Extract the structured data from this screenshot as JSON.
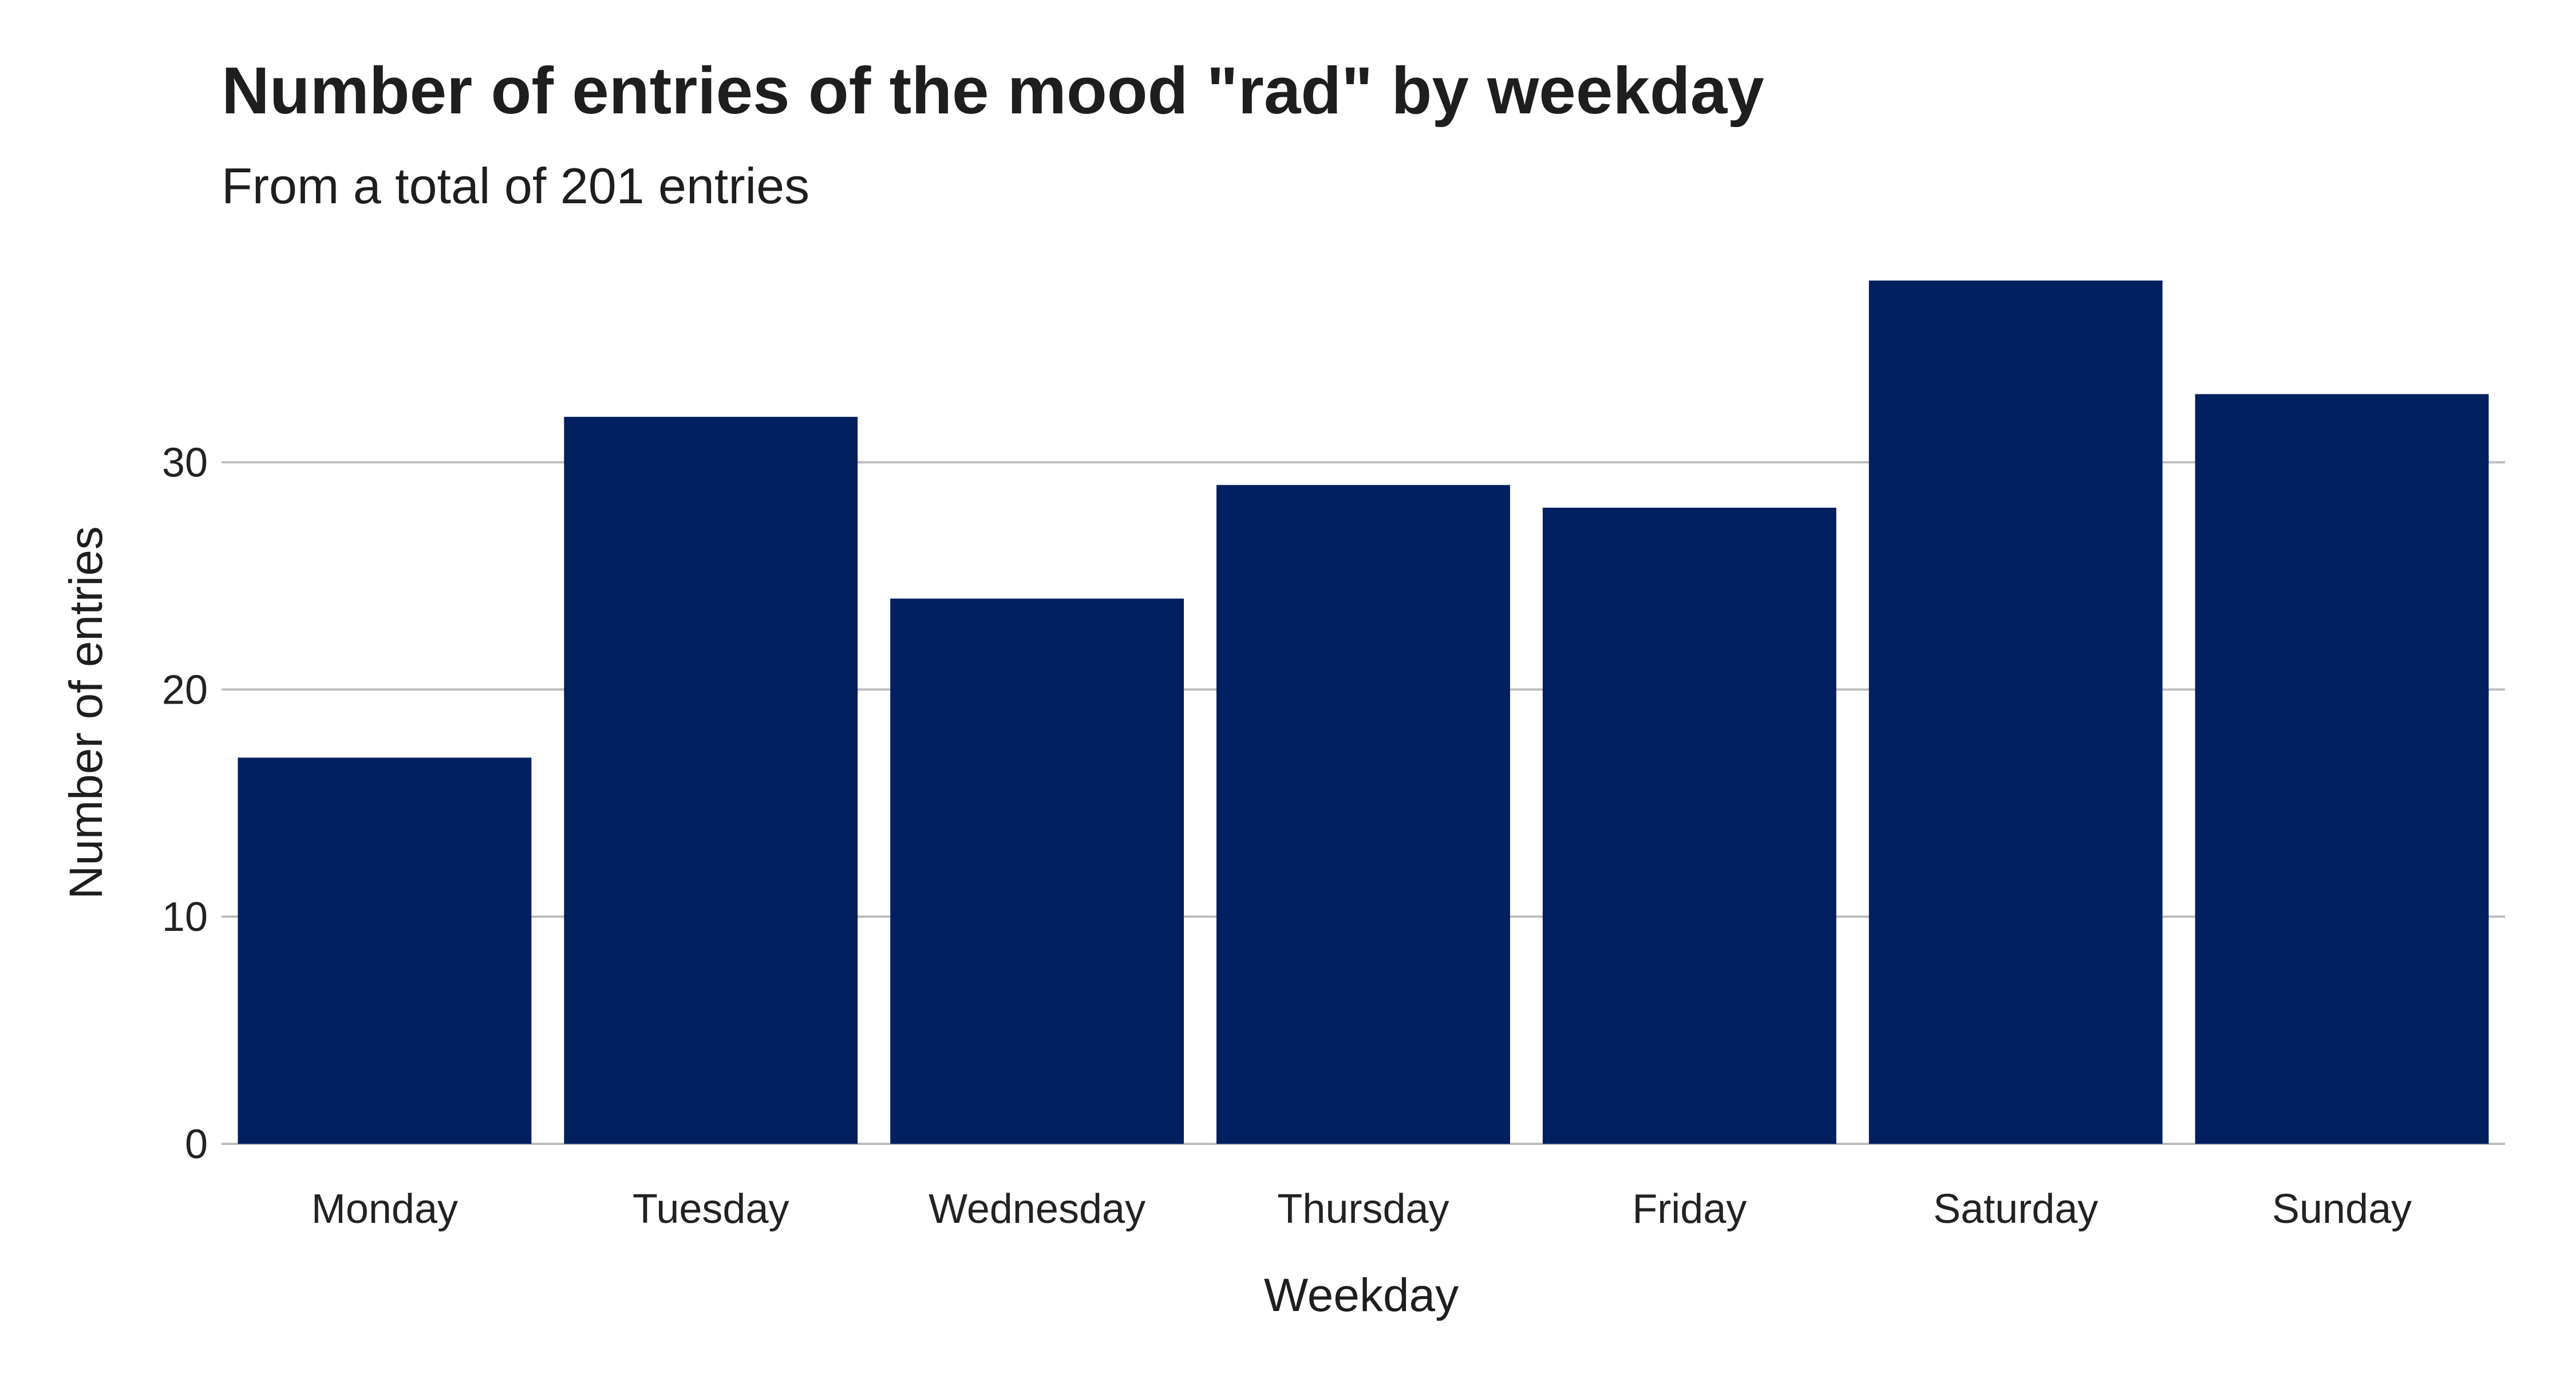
{
  "chart_data": {
    "type": "bar",
    "title": "Number of entries of the mood \"rad\" by weekday",
    "subtitle": "From a total of 201 entries",
    "xlabel": "Weekday",
    "ylabel": "Number of entries",
    "categories": [
      "Monday",
      "Tuesday",
      "Wednesday",
      "Thursday",
      "Friday",
      "Saturday",
      "Sunday"
    ],
    "values": [
      17,
      32,
      24,
      29,
      28,
      38,
      33
    ],
    "ylim": [
      0,
      38
    ],
    "yticks": [
      0,
      10,
      20,
      30
    ],
    "ytick_labels": [
      "0",
      "10",
      "20",
      "30"
    ],
    "grid": true,
    "legend": "none",
    "bar_color": "#021f5f",
    "grid_color": "#bdbdbd"
  }
}
